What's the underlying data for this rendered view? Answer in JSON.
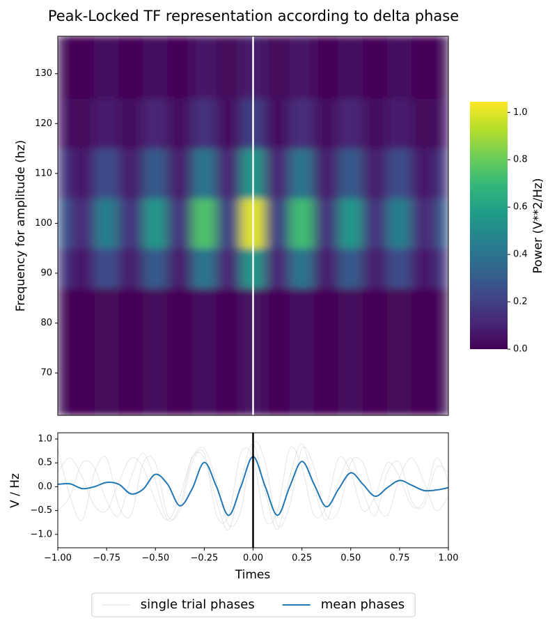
{
  "chart_data": [
    {
      "type": "heatmap",
      "title": "Peak-Locked TF representation according to delta phase",
      "ylabel": "Frequency for amplitude (hz)",
      "clabel": "Power (V**2/Hz)",
      "colormap": "viridis",
      "x_edges": [
        -1,
        -0.9375,
        -0.8125,
        -0.6875,
        -0.5625,
        -0.4375,
        -0.3125,
        -0.1875,
        -0.0625,
        0.0625,
        0.1875,
        0.3125,
        0.4375,
        0.5625,
        0.6875,
        0.8125,
        0.9375,
        1
      ],
      "y_edges": [
        61.5,
        87,
        95,
        105,
        115,
        125,
        137.5
      ],
      "z": [
        [
          0.02,
          0.01,
          0.02,
          0.01,
          0.03,
          0.01,
          0.04,
          0.01,
          0.05,
          0.01,
          0.04,
          0.01,
          0.03,
          0.01,
          0.02,
          0.01,
          0.02
        ],
        [
          0.17,
          0.07,
          0.25,
          0.08,
          0.3,
          0.08,
          0.41,
          0.11,
          0.55,
          0.11,
          0.4,
          0.08,
          0.3,
          0.08,
          0.25,
          0.07,
          0.17
        ],
        [
          0.3,
          0.12,
          0.45,
          0.15,
          0.55,
          0.15,
          0.75,
          0.2,
          1.0,
          0.2,
          0.72,
          0.15,
          0.55,
          0.15,
          0.45,
          0.12,
          0.3
        ],
        [
          0.17,
          0.07,
          0.25,
          0.08,
          0.3,
          0.08,
          0.41,
          0.11,
          0.55,
          0.11,
          0.4,
          0.08,
          0.3,
          0.08,
          0.25,
          0.07,
          0.17
        ],
        [
          0.06,
          0.02,
          0.09,
          0.03,
          0.11,
          0.03,
          0.15,
          0.04,
          0.2,
          0.04,
          0.14,
          0.03,
          0.11,
          0.03,
          0.09,
          0.02,
          0.06
        ],
        [
          0.02,
          0.01,
          0.04,
          0.01,
          0.04,
          0.01,
          0.06,
          0.02,
          0.08,
          0.02,
          0.06,
          0.01,
          0.04,
          0.01,
          0.04,
          0.01,
          0.02
        ]
      ],
      "xlim": [
        -1,
        1
      ],
      "ylim": [
        61.5,
        137.5
      ],
      "yticks": [
        70,
        80,
        90,
        100,
        110,
        120,
        130
      ],
      "clim": [
        0,
        1.045
      ],
      "cticks": [
        {
          "value": 0,
          "label": "0.0"
        },
        0.2,
        0.4,
        0.6,
        0.8,
        {
          "value": 1,
          "label": "1.0"
        }
      ],
      "vline": 0,
      "vline_color": "#ffffff"
    },
    {
      "type": "line",
      "xlabel": "Times",
      "ylabel": "V / Hz",
      "x": [
        -1,
        -0.9375,
        -0.875,
        -0.8125,
        -0.75,
        -0.6875,
        -0.625,
        -0.5625,
        -0.5,
        -0.4375,
        -0.375,
        -0.3125,
        -0.25,
        -0.1875,
        -0.125,
        -0.0625,
        0,
        0.0625,
        0.125,
        0.1875,
        0.25,
        0.3125,
        0.375,
        0.4375,
        0.5,
        0.5625,
        0.625,
        0.6875,
        0.75,
        0.8125,
        0.875,
        0.9375,
        1
      ],
      "series": [
        {
          "name": "single trial phases",
          "color": "#c8c8c8",
          "values": [
            [
              0.3,
              0.6,
              0.2,
              -0.4,
              -0.5,
              0.1,
              0.6,
              0.4,
              -0.3,
              -0.7,
              -0.2,
              0.6,
              0.8,
              0.1,
              -0.8,
              -0.5,
              0.9,
              0.5,
              -0.8,
              -0.4,
              0.8,
              0.4,
              -0.6,
              -0.5,
              0.5,
              0.5,
              -0.3,
              -0.6,
              0.2,
              0.6,
              0.1,
              -0.5,
              -0.2
            ],
            [
              -0.5,
              -0.2,
              0.5,
              0.4,
              -0.3,
              -0.6,
              0.2,
              0.7,
              0.1,
              -0.7,
              -0.4,
              0.6,
              0.6,
              -0.3,
              -0.9,
              0.1,
              0.9,
              -0.1,
              -0.9,
              0.2,
              0.9,
              0.0,
              -0.7,
              0.1,
              0.6,
              -0.1,
              -0.6,
              0.3,
              0.5,
              -0.3,
              -0.4,
              0.4,
              0.3
            ],
            [
              0.8,
              -0.2,
              -0.7,
              0.3,
              0.6,
              -0.4,
              -0.6,
              0.5,
              0.5,
              -0.6,
              -0.5,
              0.5,
              0.7,
              -0.6,
              -0.6,
              0.7,
              0.6,
              -0.7,
              -0.5,
              0.8,
              0.4,
              -0.6,
              -0.4,
              0.6,
              0.3,
              -0.5,
              -0.2,
              0.5,
              0.2,
              -0.4,
              -0.3,
              0.6,
              0.1
            ]
          ]
        },
        {
          "name": "mean phases",
          "color": "#1f77b4",
          "values": [
            0.05,
            0.06,
            -0.04,
            0.0,
            0.09,
            0.05,
            -0.15,
            -0.05,
            0.26,
            0.05,
            -0.4,
            -0.05,
            0.51,
            0.0,
            -0.6,
            0.0,
            0.63,
            0.0,
            -0.6,
            0.0,
            0.53,
            0.05,
            -0.42,
            -0.05,
            0.29,
            0.05,
            -0.2,
            -0.02,
            0.13,
            0.03,
            -0.08,
            -0.07,
            -0.02
          ]
        }
      ],
      "xlim": [
        -1,
        1
      ],
      "ylim": [
        -1.28,
        1.13
      ],
      "xticks": [
        {
          "value": -1,
          "label": "−1.00"
        },
        {
          "value": -0.75,
          "label": "−0.75"
        },
        {
          "value": -0.5,
          "label": "−0.50"
        },
        {
          "value": -0.25,
          "label": "−0.25"
        },
        {
          "value": 0,
          "label": "0.00"
        },
        0.25,
        {
          "value": 0.5,
          "label": "0.50"
        },
        0.75,
        {
          "value": 1,
          "label": "1.00"
        }
      ],
      "yticks": [
        {
          "value": -1,
          "label": "−1.0"
        },
        {
          "value": -0.5,
          "label": "−0.5"
        },
        {
          "value": 0,
          "label": "0.0"
        },
        0.5,
        {
          "value": 1,
          "label": "1.0"
        }
      ],
      "vline": 0,
      "vline_color": "#000000",
      "legend": "lower center"
    }
  ]
}
